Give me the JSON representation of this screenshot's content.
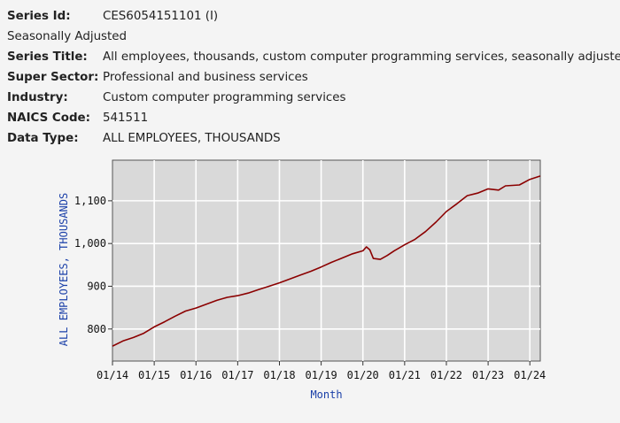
{
  "series_info": {
    "series_id_label": "Series Id:",
    "series_id": "CES6054151101 (I)",
    "seasonal": "Seasonally Adjusted",
    "series_title_label": "Series Title:",
    "series_title": "All employees, thousands, custom computer programming services, seasonally adjusted",
    "super_sector_label": "Super Sector:",
    "super_sector": "Professional and business services",
    "industry_label": "Industry:",
    "industry": "Custom computer programming services",
    "naics_label": "NAICS Code:",
    "naics": "541511",
    "data_type_label": "Data Type:",
    "data_type": "ALL EMPLOYEES, THOUSANDS"
  },
  "colors": {
    "plot_bg": "#d9d9d9",
    "line": "#8b0000",
    "axis_label": "#1a3fa8"
  },
  "chart_data": {
    "type": "line",
    "xlabel": "Month",
    "ylabel": "ALL EMPLOYEES, THOUSANDS",
    "x_ticks": [
      "01/14",
      "01/15",
      "01/16",
      "01/17",
      "01/18",
      "01/19",
      "01/20",
      "01/21",
      "01/22",
      "01/23",
      "01/24"
    ],
    "y_ticks": [
      800,
      900,
      "1,000",
      "1,100"
    ],
    "xlim": [
      "2014-01",
      "2024-04"
    ],
    "ylim": [
      725,
      1195
    ],
    "grid": true,
    "series": [
      {
        "points": [
          [
            "2014-01",
            760
          ],
          [
            "2014-04",
            772
          ],
          [
            "2014-07",
            780
          ],
          [
            "2014-10",
            790
          ],
          [
            "2015-01",
            805
          ],
          [
            "2015-04",
            817
          ],
          [
            "2015-07",
            830
          ],
          [
            "2015-10",
            842
          ],
          [
            "2016-01",
            849
          ],
          [
            "2016-04",
            858
          ],
          [
            "2016-07",
            867
          ],
          [
            "2016-10",
            874
          ],
          [
            "2017-01",
            878
          ],
          [
            "2017-04",
            884
          ],
          [
            "2017-07",
            892
          ],
          [
            "2017-10",
            900
          ],
          [
            "2018-01",
            908
          ],
          [
            "2018-04",
            917
          ],
          [
            "2018-07",
            926
          ],
          [
            "2018-10",
            935
          ],
          [
            "2019-01",
            945
          ],
          [
            "2019-04",
            956
          ],
          [
            "2019-07",
            966
          ],
          [
            "2019-10",
            976
          ],
          [
            "2020-01",
            983
          ],
          [
            "2020-02",
            992
          ],
          [
            "2020-03",
            985
          ],
          [
            "2020-04",
            965
          ],
          [
            "2020-06",
            963
          ],
          [
            "2020-08",
            972
          ],
          [
            "2020-10",
            983
          ],
          [
            "2021-01",
            997
          ],
          [
            "2021-04",
            1010
          ],
          [
            "2021-07",
            1028
          ],
          [
            "2021-10",
            1050
          ],
          [
            "2022-01",
            1075
          ],
          [
            "2022-04",
            1093
          ],
          [
            "2022-07",
            1112
          ],
          [
            "2022-10",
            1118
          ],
          [
            "2023-01",
            1128
          ],
          [
            "2023-04",
            1125
          ],
          [
            "2023-06",
            1135
          ],
          [
            "2023-10",
            1137
          ],
          [
            "2024-01",
            1150
          ],
          [
            "2024-04",
            1158
          ]
        ]
      }
    ]
  }
}
